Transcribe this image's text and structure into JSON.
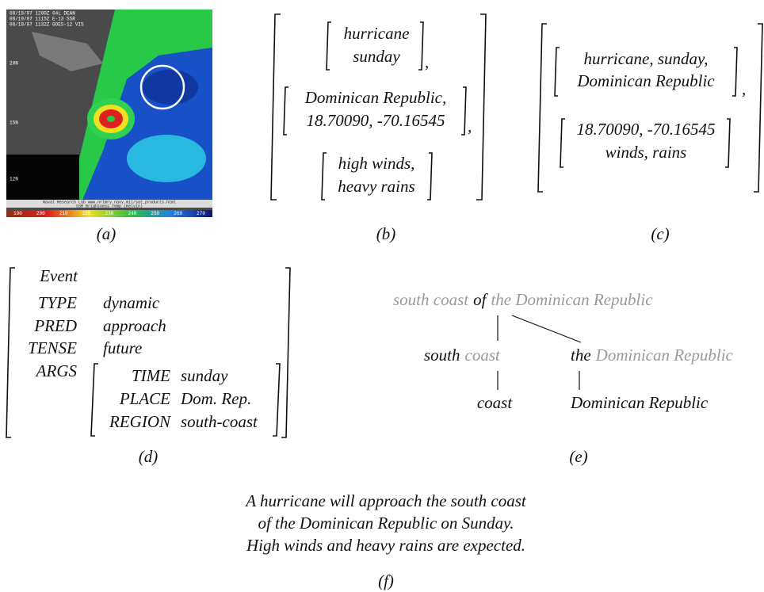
{
  "panel_a": {
    "caption": "(a)",
    "image_text": [
      "08/19/07 1200Z 04L DEAN",
      "08/19/07 1115Z E-13 SSR",
      "08/19/07 1132Z GOES-12 VIS"
    ],
    "lat_labels": [
      "20N",
      "15N",
      "12N"
    ],
    "footer": [
      "Naval Research Lab  www.nrlmry.navy.mil/sat_products.html",
      "SSR Brightness Temp (Kelvin)"
    ],
    "colorbar": [
      "190",
      "200",
      "210",
      "220",
      "230",
      "240",
      "250",
      "260",
      "270"
    ]
  },
  "panel_b": {
    "caption": "(b)",
    "items": [
      [
        "hurricane",
        "sunday"
      ],
      [
        "Dominican Republic,",
        "18.70090, -70.16545"
      ],
      [
        "high winds,",
        "heavy rains"
      ]
    ],
    "separators": [
      ",",
      ","
    ]
  },
  "panel_c": {
    "caption": "(c)",
    "items": [
      [
        "hurricane, sunday,",
        "Dominican Republic"
      ],
      [
        "18.70090, -70.16545",
        "winds, rains"
      ]
    ],
    "separator": ","
  },
  "panel_d": {
    "caption": "(d)",
    "head": "Event",
    "rows": [
      {
        "attr": "TYPE",
        "value": "dynamic"
      },
      {
        "attr": "PRED",
        "value": "approach"
      },
      {
        "attr": "TENSE",
        "value": "future"
      }
    ],
    "args_label": "ARGS",
    "args": [
      {
        "attr": "TIME",
        "value": "sunday"
      },
      {
        "attr": "PLACE",
        "value": "Dom. Rep."
      },
      {
        "attr": "REGION",
        "value": "south-coast"
      }
    ]
  },
  "panel_e": {
    "caption": "(e)",
    "root": {
      "left": "south coast",
      "head": "of",
      "right": "the Dominican Republic"
    },
    "left_node": {
      "head": "south",
      "rest": "coast"
    },
    "right_node": {
      "head": "the",
      "rest": "Dominican Republic"
    },
    "leaves": [
      "coast",
      "Dominican Republic"
    ]
  },
  "panel_f": {
    "caption": "(f)",
    "lines": [
      "A hurricane will approach the south coast",
      "of the Dominican Republic on Sunday.",
      "High winds and heavy rains are expected."
    ]
  }
}
